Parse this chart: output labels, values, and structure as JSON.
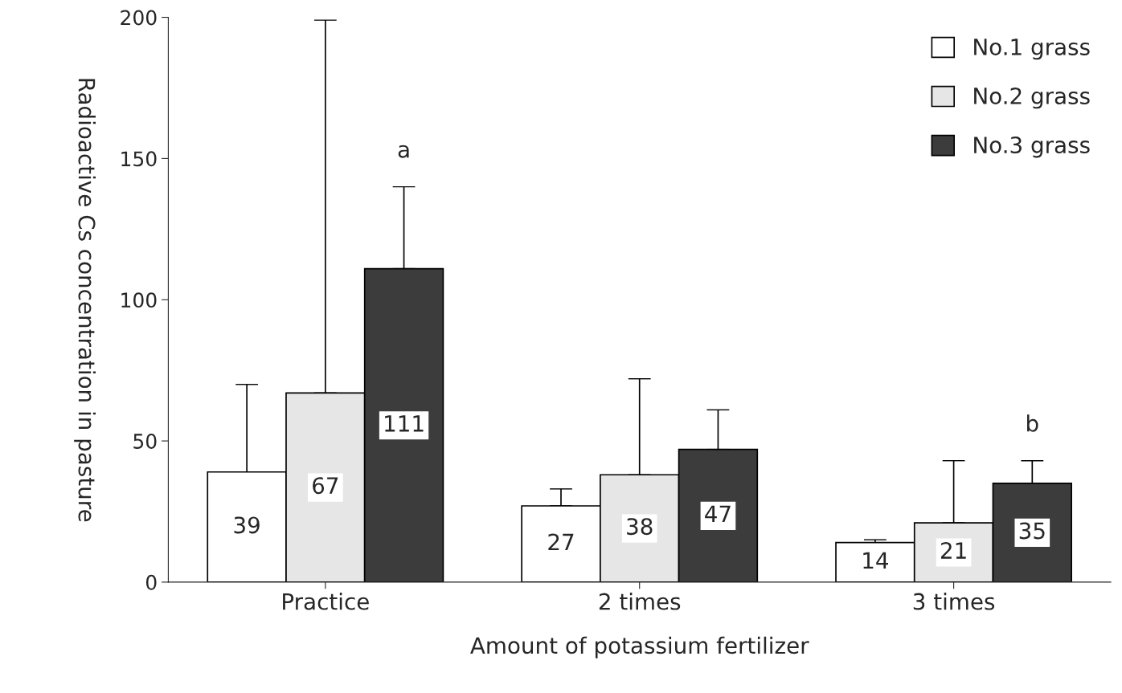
{
  "chart_data": {
    "type": "bar",
    "xlabel": "Amount of potassium fertilizer",
    "ylabel": "Radioactive Cs concentration in pasture",
    "categories": [
      "Practice",
      "2 times",
      "3 times"
    ],
    "series": [
      {
        "name": "No.1 grass",
        "color": "#ffffff",
        "values": [
          39,
          27,
          14
        ],
        "errors": [
          [
            39,
            70
          ],
          [
            27,
            33
          ],
          [
            14,
            15
          ]
        ]
      },
      {
        "name": "No.2 grass",
        "color": "#e6e6e6",
        "values": [
          67,
          38,
          21
        ],
        "errors": [
          [
            67,
            199
          ],
          [
            38,
            72
          ],
          [
            21,
            43
          ]
        ]
      },
      {
        "name": "No.3 grass",
        "color": "#3c3c3c",
        "values": [
          111,
          47,
          35
        ],
        "errors": [
          [
            111,
            140
          ],
          [
            47,
            61
          ],
          [
            35,
            43
          ]
        ]
      }
    ],
    "ylim": [
      0,
      200
    ],
    "yticks": [
      0,
      50,
      100,
      150,
      200
    ],
    "grid": false,
    "legend": "top right",
    "data_labels": true,
    "annotations": [
      "a",
      "b"
    ]
  }
}
